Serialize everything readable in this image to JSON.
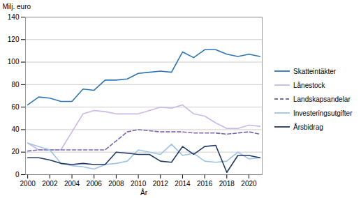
{
  "chart_data": {
    "type": "line",
    "xlabel": "År",
    "ylabel": "Milj. euro",
    "x": [
      2000,
      2001,
      2002,
      2003,
      2004,
      2005,
      2006,
      2007,
      2008,
      2009,
      2010,
      2011,
      2012,
      2013,
      2014,
      2015,
      2016,
      2017,
      2018,
      2019,
      2020,
      2021
    ],
    "xlim": [
      1999.8,
      2021.2
    ],
    "xticks": [
      2000,
      2002,
      2004,
      2006,
      2008,
      2010,
      2012,
      2014,
      2016,
      2018,
      2020
    ],
    "ylim": [
      0,
      140
    ],
    "yticks": [
      0,
      20,
      40,
      60,
      80,
      100,
      120,
      140
    ],
    "grid": "y",
    "legend": "right",
    "series": [
      {
        "name": "Skatteintäkter",
        "color": "#2e75b6",
        "line_style": "solid",
        "values": [
          62,
          69,
          68,
          65,
          65,
          76,
          75,
          84,
          84,
          85,
          90,
          91,
          92,
          91,
          109,
          104,
          111,
          111,
          107,
          105,
          107,
          105
        ]
      },
      {
        "name": "Lånestock",
        "color": "#c9b8e8",
        "line_style": "solid",
        "values": [
          28,
          22,
          22,
          22,
          38,
          54,
          57,
          56,
          54,
          54,
          54,
          57,
          60,
          59,
          62,
          54,
          52,
          46,
          41,
          41,
          44,
          43
        ]
      },
      {
        "name": "Landskapsandelar",
        "color": "#7b68b0",
        "line_style": "dashed",
        "values": [
          21,
          22,
          22,
          22,
          22,
          22,
          22,
          22,
          30,
          38,
          40,
          39,
          38,
          38,
          38,
          37,
          37,
          37,
          36,
          37,
          38,
          36
        ]
      },
      {
        "name": "Investeringsutgifter",
        "color": "#9dc3e6",
        "line_style": "solid",
        "values": [
          28,
          25,
          22,
          10,
          8,
          7,
          5,
          9,
          10,
          12,
          22,
          20,
          18,
          27,
          17,
          19,
          12,
          11,
          12,
          20,
          14,
          15
        ]
      },
      {
        "name": "Årsbidrag",
        "color": "#203864",
        "line_style": "solid",
        "values": [
          15,
          15,
          13,
          10,
          9,
          10,
          9,
          9,
          20,
          19,
          18,
          18,
          12,
          11,
          25,
          18,
          25,
          26,
          2,
          17,
          17,
          15
        ]
      }
    ]
  }
}
